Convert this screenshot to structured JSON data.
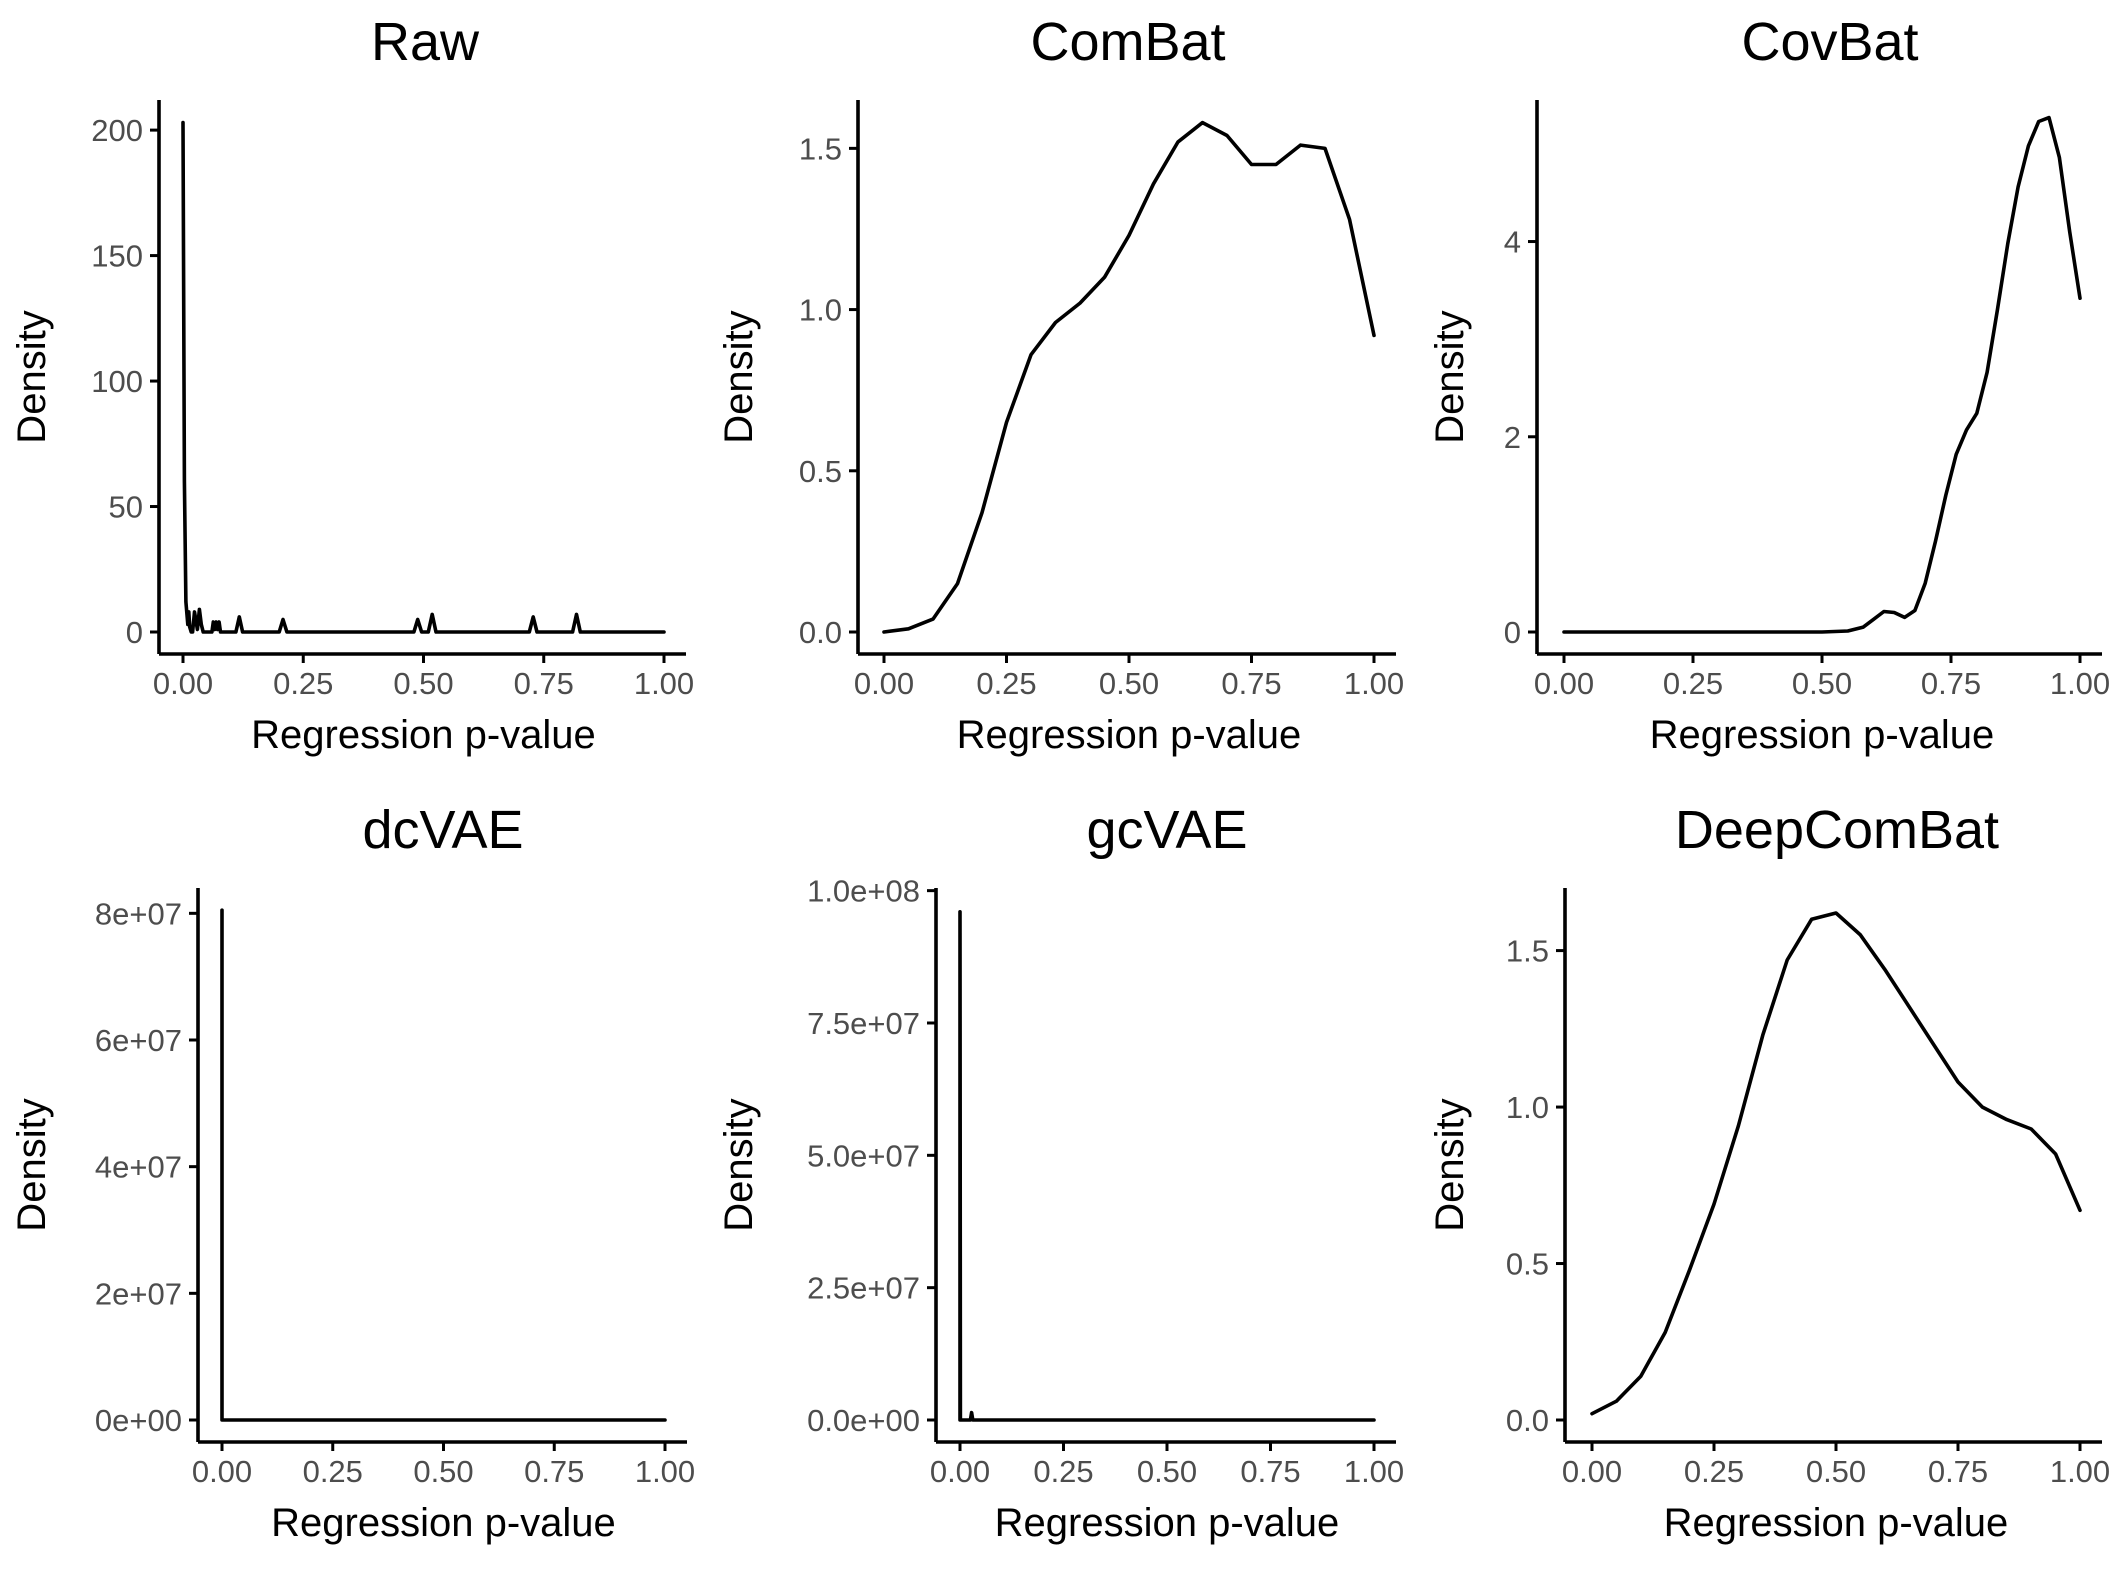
{
  "chart_data": [
    {
      "type": "line",
      "title": "Raw",
      "xlabel": "Regression p-value",
      "ylabel": "Density",
      "xlim": [
        0,
        1
      ],
      "ylim": [
        0,
        212
      ],
      "x_ticks": [
        0,
        0.25,
        0.5,
        0.75,
        1
      ],
      "x_tick_labels": [
        "0.00",
        "0.25",
        "0.50",
        "0.75",
        "1.00"
      ],
      "y_ticks": [
        0,
        50,
        100,
        150,
        200
      ],
      "y_tick_labels": [
        "0",
        "50",
        "100",
        "150",
        "200"
      ],
      "grid": false,
      "series": [
        {
          "x": [
            0,
            0.003,
            0.006,
            0.01,
            0.012,
            0.014,
            0.017,
            0.02,
            0.024,
            0.03,
            0.034,
            0.038,
            0.042,
            0.05,
            0.06,
            0.063,
            0.066,
            0.069,
            0.072,
            0.075,
            0.078,
            0.081,
            0.09,
            0.11,
            0.117,
            0.124,
            0.13,
            0.2,
            0.208,
            0.216,
            0.224,
            0.48,
            0.488,
            0.496,
            0.51,
            0.518,
            0.526,
            0.72,
            0.728,
            0.736,
            0.81,
            0.818,
            0.826,
            1.0
          ],
          "y": [
            203,
            60,
            12,
            3,
            8,
            2,
            0,
            0,
            8,
            1,
            9,
            3,
            0,
            0,
            0,
            4,
            1,
            4,
            1,
            4,
            0,
            0,
            0,
            0,
            6,
            0,
            0,
            0,
            5,
            0,
            0,
            0,
            5,
            0,
            0,
            7,
            0,
            0,
            6,
            0,
            0,
            7,
            0,
            0
          ]
        }
      ]
    },
    {
      "type": "line",
      "title": "ComBat",
      "xlabel": "Regression p-value",
      "ylabel": "Density",
      "xlim": [
        0,
        1
      ],
      "ylim": [
        0,
        1.65
      ],
      "x_ticks": [
        0,
        0.25,
        0.5,
        0.75,
        1
      ],
      "x_tick_labels": [
        "0.00",
        "0.25",
        "0.50",
        "0.75",
        "1.00"
      ],
      "y_ticks": [
        0,
        0.5,
        1.0,
        1.5
      ],
      "y_tick_labels": [
        "0.0",
        "0.5",
        "1.0",
        "1.5"
      ],
      "grid": false,
      "series": [
        {
          "x": [
            0.0,
            0.05,
            0.1,
            0.15,
            0.2,
            0.25,
            0.3,
            0.35,
            0.4,
            0.45,
            0.5,
            0.55,
            0.6,
            0.65,
            0.7,
            0.75,
            0.8,
            0.85,
            0.9,
            0.95,
            1.0
          ],
          "y": [
            0.0,
            0.01,
            0.04,
            0.15,
            0.37,
            0.65,
            0.86,
            0.96,
            1.02,
            1.1,
            1.23,
            1.39,
            1.52,
            1.58,
            1.54,
            1.45,
            1.45,
            1.51,
            1.5,
            1.28,
            0.92
          ]
        }
      ]
    },
    {
      "type": "line",
      "title": "CovBat",
      "xlabel": "Regression p-value",
      "ylabel": "Density",
      "xlim": [
        0,
        1
      ],
      "ylim": [
        0,
        5.45
      ],
      "x_ticks": [
        0,
        0.25,
        0.5,
        0.75,
        1
      ],
      "x_tick_labels": [
        "0.00",
        "0.25",
        "0.50",
        "0.75",
        "1.00"
      ],
      "y_ticks": [
        0,
        2,
        4
      ],
      "y_tick_labels": [
        "0",
        "2",
        "4"
      ],
      "grid": false,
      "series": [
        {
          "x": [
            0.0,
            0.5,
            0.55,
            0.58,
            0.6,
            0.62,
            0.64,
            0.66,
            0.68,
            0.7,
            0.72,
            0.74,
            0.76,
            0.78,
            0.8,
            0.82,
            0.84,
            0.86,
            0.88,
            0.9,
            0.92,
            0.94,
            0.96,
            0.98,
            1.0
          ],
          "y": [
            0.0,
            0.0,
            0.01,
            0.05,
            0.13,
            0.21,
            0.2,
            0.15,
            0.22,
            0.5,
            0.93,
            1.4,
            1.82,
            2.07,
            2.24,
            2.66,
            3.3,
            3.98,
            4.56,
            4.98,
            5.23,
            5.27,
            4.86,
            4.1,
            3.42
          ]
        }
      ]
    },
    {
      "type": "line",
      "title": "dcVAE",
      "xlabel": "Regression p-value",
      "ylabel": "Density",
      "xlim": [
        0,
        1
      ],
      "ylim": [
        0,
        84000000
      ],
      "x_ticks": [
        0,
        0.25,
        0.5,
        0.75,
        1
      ],
      "x_tick_labels": [
        "0.00",
        "0.25",
        "0.50",
        "0.75",
        "1.00"
      ],
      "y_ticks": [
        0,
        20000000,
        40000000,
        60000000,
        80000000
      ],
      "y_tick_labels": [
        "0e+00",
        "2e+07",
        "4e+07",
        "6e+07",
        "8e+07"
      ],
      "grid": false,
      "series": [
        {
          "x": [
            0.0,
            0.0,
            0.0,
            0.001,
            1.0
          ],
          "y": [
            0,
            80500000,
            0,
            0,
            0
          ]
        }
      ]
    },
    {
      "type": "line",
      "title": "gcVAE",
      "xlabel": "Regression p-value",
      "ylabel": "Density",
      "xlim": [
        0,
        1
      ],
      "ylim": [
        0,
        100500000
      ],
      "x_ticks": [
        0,
        0.25,
        0.5,
        0.75,
        1
      ],
      "x_tick_labels": [
        "0.00",
        "0.25",
        "0.50",
        "0.75",
        "1.00"
      ],
      "y_ticks": [
        0,
        25000000,
        50000000,
        75000000,
        100000000
      ],
      "y_tick_labels": [
        "0.0e+00",
        "2.5e+07",
        "5.0e+07",
        "7.5e+07",
        "1.0e+08"
      ],
      "grid": false,
      "series": [
        {
          "x": [
            0.0,
            0.0,
            0.001,
            0.025,
            0.028,
            0.031,
            1.0
          ],
          "y": [
            0,
            96000000,
            0,
            0,
            1400000,
            0,
            0
          ]
        }
      ]
    },
    {
      "type": "line",
      "title": "DeepComBat",
      "xlabel": "Regression p-value",
      "ylabel": "Density",
      "xlim": [
        0,
        1
      ],
      "ylim": [
        0,
        1.7
      ],
      "x_ticks": [
        0,
        0.25,
        0.5,
        0.75,
        1
      ],
      "x_tick_labels": [
        "0.00",
        "0.25",
        "0.50",
        "0.75",
        "1.00"
      ],
      "y_ticks": [
        0,
        0.5,
        1.0,
        1.5
      ],
      "y_tick_labels": [
        "0.0",
        "0.5",
        "1.0",
        "1.5"
      ],
      "grid": false,
      "series": [
        {
          "x": [
            0.0,
            0.05,
            0.1,
            0.15,
            0.2,
            0.25,
            0.3,
            0.35,
            0.4,
            0.45,
            0.5,
            0.55,
            0.6,
            0.65,
            0.7,
            0.75,
            0.8,
            0.85,
            0.9,
            0.95,
            1.0
          ],
          "y": [
            0.02,
            0.06,
            0.14,
            0.28,
            0.48,
            0.69,
            0.94,
            1.23,
            1.47,
            1.6,
            1.62,
            1.55,
            1.44,
            1.32,
            1.2,
            1.08,
            1.0,
            0.96,
            0.93,
            0.85,
            0.67
          ]
        }
      ]
    }
  ]
}
